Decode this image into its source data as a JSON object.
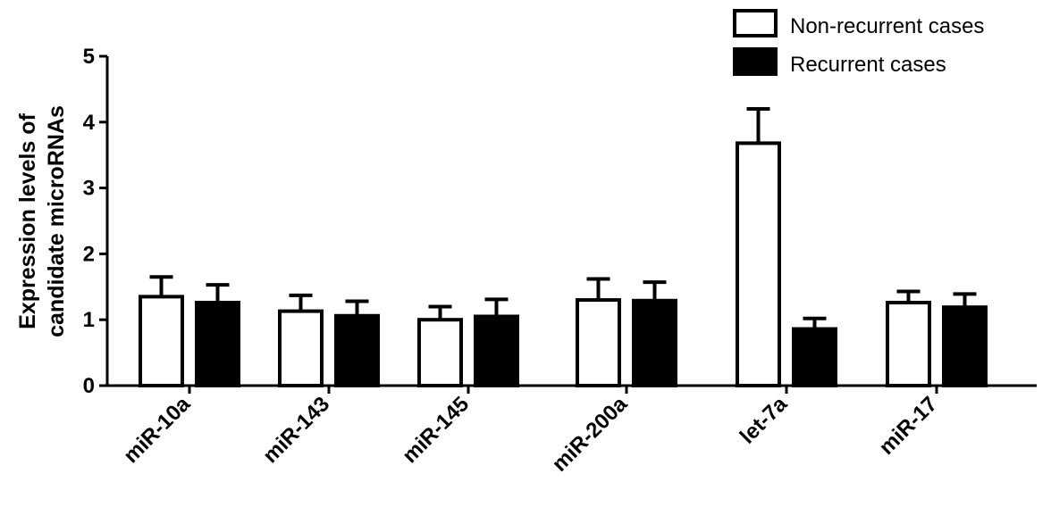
{
  "chart_data": {
    "type": "bar",
    "ylabel_lines": [
      "Expression levels of",
      "candidate microRNAs"
    ],
    "xlabel": "",
    "ylim": [
      0,
      5
    ],
    "yticks": [
      "0",
      "1",
      "2",
      "3",
      "4",
      "5"
    ],
    "categories": [
      "miR-10a",
      "miR-143",
      "miR-145",
      "miR-200a",
      "let-7a",
      "miR-17"
    ],
    "series": [
      {
        "name": "Non-recurrent cases",
        "fill": "#ffffff",
        "values": [
          1.35,
          1.13,
          1.0,
          1.3,
          3.68,
          1.26
        ],
        "errors": [
          0.3,
          0.24,
          0.2,
          0.32,
          0.52,
          0.17
        ]
      },
      {
        "name": "Recurrent cases",
        "fill": "#000000",
        "values": [
          1.26,
          1.06,
          1.05,
          1.29,
          0.86,
          1.19
        ],
        "errors": [
          0.27,
          0.22,
          0.26,
          0.28,
          0.16,
          0.2
        ]
      }
    ],
    "legend": "top-right",
    "grid": false
  }
}
